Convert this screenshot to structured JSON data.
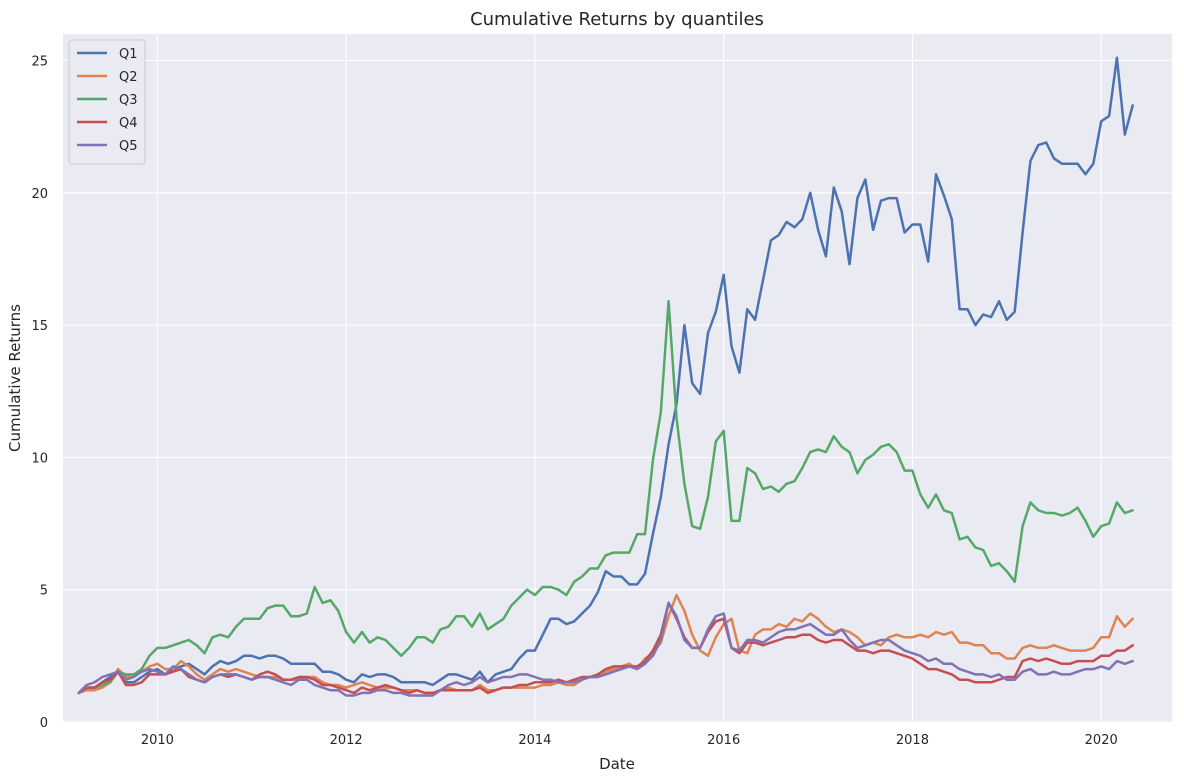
{
  "chart_data": {
    "type": "line",
    "title": "Cumulative Returns by quantiles",
    "xlabel": "Date",
    "ylabel": "Cumulative Returns",
    "xlim": [
      "2009-01",
      "2020-10"
    ],
    "ylim": [
      0,
      26
    ],
    "xticks": [
      "2010",
      "2012",
      "2014",
      "2016",
      "2018",
      "2020"
    ],
    "yticks": [
      0,
      5,
      10,
      15,
      20,
      25
    ],
    "grid": true,
    "legend_position": "top-left",
    "x": [
      "2009-03",
      "2009-04",
      "2009-05",
      "2009-06",
      "2009-07",
      "2009-08",
      "2009-09",
      "2009-10",
      "2009-11",
      "2009-12",
      "2010-01",
      "2010-02",
      "2010-03",
      "2010-04",
      "2010-05",
      "2010-06",
      "2010-07",
      "2010-08",
      "2010-09",
      "2010-10",
      "2010-11",
      "2010-12",
      "2011-01",
      "2011-02",
      "2011-03",
      "2011-04",
      "2011-05",
      "2011-06",
      "2011-07",
      "2011-08",
      "2011-09",
      "2011-10",
      "2011-11",
      "2011-12",
      "2012-01",
      "2012-02",
      "2012-03",
      "2012-04",
      "2012-05",
      "2012-06",
      "2012-07",
      "2012-08",
      "2012-09",
      "2012-10",
      "2012-11",
      "2012-12",
      "2013-01",
      "2013-02",
      "2013-03",
      "2013-04",
      "2013-05",
      "2013-06",
      "2013-07",
      "2013-08",
      "2013-09",
      "2013-10",
      "2013-11",
      "2013-12",
      "2014-01",
      "2014-02",
      "2014-03",
      "2014-04",
      "2014-05",
      "2014-06",
      "2014-07",
      "2014-08",
      "2014-09",
      "2014-10",
      "2014-11",
      "2014-12",
      "2015-01",
      "2015-02",
      "2015-03",
      "2015-04",
      "2015-05",
      "2015-06",
      "2015-07",
      "2015-08",
      "2015-09",
      "2015-10",
      "2015-11",
      "2015-12",
      "2016-01",
      "2016-02",
      "2016-03",
      "2016-04",
      "2016-05",
      "2016-06",
      "2016-07",
      "2016-08",
      "2016-09",
      "2016-10",
      "2016-11",
      "2016-12",
      "2017-01",
      "2017-02",
      "2017-03",
      "2017-04",
      "2017-05",
      "2017-06",
      "2017-07",
      "2017-08",
      "2017-09",
      "2017-10",
      "2017-11",
      "2017-12",
      "2018-01",
      "2018-02",
      "2018-03",
      "2018-04",
      "2018-05",
      "2018-06",
      "2018-07",
      "2018-08",
      "2018-09",
      "2018-10",
      "2018-11",
      "2018-12",
      "2019-01",
      "2019-02",
      "2019-03",
      "2019-04",
      "2019-05",
      "2019-06",
      "2019-07",
      "2019-08",
      "2019-09",
      "2019-10",
      "2019-11",
      "2019-12",
      "2020-01",
      "2020-02",
      "2020-03",
      "2020-04",
      "2020-05"
    ],
    "series": [
      {
        "name": "Q1",
        "color": "#4c72b0",
        "values": [
          1.1,
          1.3,
          1.3,
          1.5,
          1.7,
          1.9,
          1.5,
          1.5,
          1.7,
          1.9,
          2.0,
          1.8,
          2.0,
          2.1,
          2.2,
          2.0,
          1.8,
          2.1,
          2.3,
          2.2,
          2.3,
          2.5,
          2.5,
          2.4,
          2.5,
          2.5,
          2.4,
          2.2,
          2.2,
          2.2,
          2.2,
          1.9,
          1.9,
          1.8,
          1.6,
          1.5,
          1.8,
          1.7,
          1.8,
          1.8,
          1.7,
          1.5,
          1.5,
          1.5,
          1.5,
          1.4,
          1.6,
          1.8,
          1.8,
          1.7,
          1.6,
          1.9,
          1.5,
          1.8,
          1.9,
          2.0,
          2.4,
          2.7,
          2.7,
          3.3,
          3.9,
          3.9,
          3.7,
          3.8,
          4.1,
          4.4,
          4.9,
          5.7,
          5.5,
          5.5,
          5.2,
          5.2,
          5.6,
          7.1,
          8.5,
          10.5,
          12.0,
          15.0,
          12.8,
          12.4,
          14.7,
          15.5,
          16.9,
          14.2,
          13.2,
          15.6,
          15.2,
          16.7,
          18.2,
          18.4,
          18.9,
          18.7,
          19.0,
          20.0,
          18.6,
          17.6,
          20.2,
          19.3,
          17.3,
          19.8,
          20.5,
          18.6,
          19.7,
          19.8,
          19.8,
          18.5,
          18.8,
          18.8,
          17.4,
          20.7,
          19.9,
          19.0,
          15.6,
          15.6,
          15.0,
          15.4,
          15.3,
          15.9,
          15.2,
          15.5,
          18.5,
          21.2,
          21.8,
          21.9,
          21.3,
          21.1,
          21.1,
          21.1,
          20.7,
          21.1,
          22.7,
          22.9,
          25.1,
          22.2,
          23.3
        ]
      },
      {
        "name": "Q2",
        "color": "#dd8452",
        "values": [
          1.1,
          1.2,
          1.2,
          1.3,
          1.5,
          2.0,
          1.7,
          1.8,
          1.9,
          2.1,
          2.2,
          2.0,
          2.0,
          2.3,
          2.1,
          1.8,
          1.6,
          1.8,
          2.0,
          1.9,
          2.0,
          1.9,
          1.8,
          1.7,
          1.7,
          1.7,
          1.6,
          1.6,
          1.6,
          1.7,
          1.7,
          1.5,
          1.4,
          1.4,
          1.3,
          1.4,
          1.5,
          1.4,
          1.3,
          1.3,
          1.3,
          1.2,
          1.2,
          1.2,
          1.1,
          1.1,
          1.2,
          1.3,
          1.2,
          1.2,
          1.2,
          1.4,
          1.2,
          1.2,
          1.3,
          1.3,
          1.3,
          1.3,
          1.3,
          1.4,
          1.4,
          1.5,
          1.4,
          1.4,
          1.6,
          1.7,
          1.7,
          1.9,
          2.0,
          2.1,
          2.2,
          2.0,
          2.4,
          2.6,
          3.0,
          4.0,
          4.8,
          4.2,
          3.3,
          2.7,
          2.5,
          3.2,
          3.7,
          3.9,
          2.7,
          2.6,
          3.3,
          3.5,
          3.5,
          3.7,
          3.6,
          3.9,
          3.8,
          4.1,
          3.9,
          3.6,
          3.4,
          3.5,
          3.4,
          3.2,
          2.9,
          3.0,
          2.9,
          3.2,
          3.3,
          3.2,
          3.2,
          3.3,
          3.2,
          3.4,
          3.3,
          3.4,
          3.0,
          3.0,
          2.9,
          2.9,
          2.6,
          2.6,
          2.4,
          2.4,
          2.8,
          2.9,
          2.8,
          2.8,
          2.9,
          2.8,
          2.7,
          2.7,
          2.7,
          2.8,
          3.2,
          3.2,
          4.0,
          3.6,
          3.9
        ]
      },
      {
        "name": "Q3",
        "color": "#55a868",
        "values": [
          1.1,
          1.3,
          1.3,
          1.4,
          1.5,
          1.9,
          1.8,
          1.8,
          2.0,
          2.5,
          2.8,
          2.8,
          2.9,
          3.0,
          3.1,
          2.9,
          2.6,
          3.2,
          3.3,
          3.2,
          3.6,
          3.9,
          3.9,
          3.9,
          4.3,
          4.4,
          4.4,
          4.0,
          4.0,
          4.1,
          5.1,
          4.5,
          4.6,
          4.2,
          3.4,
          3.0,
          3.4,
          3.0,
          3.2,
          3.1,
          2.8,
          2.5,
          2.8,
          3.2,
          3.2,
          3.0,
          3.5,
          3.6,
          4.0,
          4.0,
          3.6,
          4.1,
          3.5,
          3.7,
          3.9,
          4.4,
          4.7,
          5.0,
          4.8,
          5.1,
          5.1,
          5.0,
          4.8,
          5.3,
          5.5,
          5.8,
          5.8,
          6.3,
          6.4,
          6.4,
          6.4,
          7.1,
          7.1,
          9.9,
          11.7,
          15.9,
          11.5,
          9.0,
          7.4,
          7.3,
          8.5,
          10.6,
          11.0,
          7.6,
          7.6,
          9.6,
          9.4,
          8.8,
          8.9,
          8.7,
          9.0,
          9.1,
          9.6,
          10.2,
          10.3,
          10.2,
          10.8,
          10.4,
          10.2,
          9.4,
          9.9,
          10.1,
          10.4,
          10.5,
          10.2,
          9.5,
          9.5,
          8.6,
          8.1,
          8.6,
          8.0,
          7.9,
          6.9,
          7.0,
          6.6,
          6.5,
          5.9,
          6.0,
          5.7,
          5.3,
          7.4,
          8.3,
          8.0,
          7.9,
          7.9,
          7.8,
          7.9,
          8.1,
          7.6,
          7.0,
          7.4,
          7.5,
          8.3,
          7.9,
          8.0
        ]
      },
      {
        "name": "Q4",
        "color": "#c44e52",
        "values": [
          1.1,
          1.3,
          1.3,
          1.5,
          1.6,
          1.9,
          1.4,
          1.4,
          1.5,
          1.8,
          1.8,
          1.8,
          1.9,
          2.0,
          1.7,
          1.6,
          1.5,
          1.7,
          1.8,
          1.7,
          1.8,
          1.7,
          1.6,
          1.8,
          1.9,
          1.8,
          1.6,
          1.6,
          1.7,
          1.7,
          1.6,
          1.4,
          1.4,
          1.3,
          1.2,
          1.1,
          1.3,
          1.2,
          1.3,
          1.4,
          1.3,
          1.2,
          1.1,
          1.2,
          1.1,
          1.1,
          1.2,
          1.2,
          1.2,
          1.2,
          1.2,
          1.3,
          1.1,
          1.2,
          1.3,
          1.3,
          1.4,
          1.4,
          1.5,
          1.5,
          1.5,
          1.6,
          1.5,
          1.6,
          1.7,
          1.7,
          1.8,
          2.0,
          2.1,
          2.1,
          2.1,
          2.1,
          2.3,
          2.7,
          3.3,
          4.5,
          3.9,
          3.2,
          2.8,
          2.8,
          3.4,
          3.8,
          3.9,
          2.8,
          2.6,
          3.0,
          3.0,
          2.9,
          3.0,
          3.1,
          3.2,
          3.2,
          3.3,
          3.3,
          3.1,
          3.0,
          3.1,
          3.1,
          2.9,
          2.7,
          2.7,
          2.6,
          2.7,
          2.7,
          2.6,
          2.5,
          2.4,
          2.2,
          2.0,
          2.0,
          1.9,
          1.8,
          1.6,
          1.6,
          1.5,
          1.5,
          1.5,
          1.6,
          1.7,
          1.7,
          2.3,
          2.4,
          2.3,
          2.4,
          2.3,
          2.2,
          2.2,
          2.3,
          2.3,
          2.3,
          2.5,
          2.5,
          2.7,
          2.7,
          2.9
        ]
      },
      {
        "name": "Q5",
        "color": "#8172b3",
        "values": [
          1.1,
          1.4,
          1.5,
          1.7,
          1.8,
          1.9,
          1.6,
          1.7,
          1.9,
          2.0,
          1.9,
          1.8,
          2.1,
          2.0,
          1.8,
          1.6,
          1.5,
          1.7,
          1.8,
          1.8,
          1.8,
          1.7,
          1.6,
          1.7,
          1.7,
          1.6,
          1.5,
          1.4,
          1.6,
          1.6,
          1.4,
          1.3,
          1.2,
          1.2,
          1.0,
          1.0,
          1.1,
          1.1,
          1.2,
          1.2,
          1.1,
          1.1,
          1.0,
          1.0,
          1.0,
          1.0,
          1.2,
          1.4,
          1.5,
          1.4,
          1.5,
          1.7,
          1.5,
          1.6,
          1.7,
          1.7,
          1.8,
          1.8,
          1.7,
          1.6,
          1.6,
          1.5,
          1.5,
          1.5,
          1.6,
          1.7,
          1.7,
          1.8,
          1.9,
          2.0,
          2.1,
          2.0,
          2.2,
          2.5,
          3.1,
          4.5,
          4.0,
          3.1,
          2.8,
          2.8,
          3.5,
          4.0,
          4.1,
          2.8,
          2.7,
          3.1,
          3.1,
          3.0,
          3.2,
          3.4,
          3.5,
          3.5,
          3.6,
          3.7,
          3.5,
          3.3,
          3.3,
          3.5,
          3.1,
          2.8,
          2.9,
          3.0,
          3.1,
          3.1,
          2.9,
          2.7,
          2.6,
          2.5,
          2.3,
          2.4,
          2.2,
          2.2,
          2.0,
          1.9,
          1.8,
          1.8,
          1.7,
          1.8,
          1.6,
          1.6,
          1.9,
          2.0,
          1.8,
          1.8,
          1.9,
          1.8,
          1.8,
          1.9,
          2.0,
          2.0,
          2.1,
          2.0,
          2.3,
          2.2,
          2.3
        ]
      }
    ]
  }
}
